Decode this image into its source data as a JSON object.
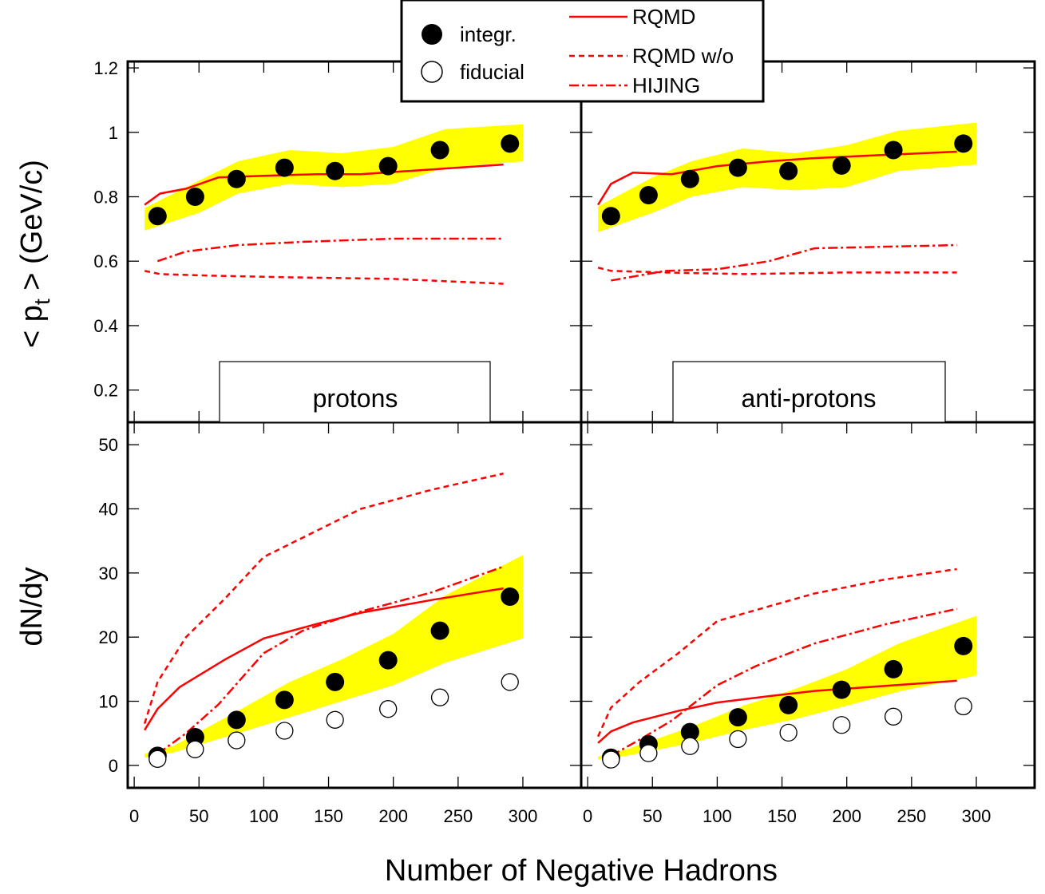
{
  "colors": {
    "model": "#ff0000",
    "band": "#ffff00",
    "frame": "#000000"
  },
  "legend": {
    "integr": "integr.",
    "fiducial": "fiducial",
    "rqmd": "RQMD",
    "rqmd_wo": "RQMD w/o",
    "hijing": "HIJING"
  },
  "labels": {
    "ylabel_top_prefix": "< p",
    "ylabel_top_sub": "t",
    "ylabel_top_suffix": " > (GeV/c)",
    "ylabel_bottom": "dN/dy",
    "xlabel": "Number of Negative Hadrons",
    "panel_left": "protons",
    "panel_right": "anti-protons"
  },
  "axes": {
    "x_ticks": [
      "0",
      "50",
      "100",
      "150",
      "200",
      "250",
      "300"
    ],
    "x_tick_values": [
      0,
      50,
      100,
      150,
      200,
      250,
      300
    ],
    "xlim": [
      -5,
      345
    ],
    "top_ylim": [
      0.1,
      1.22
    ],
    "top_ticks": [
      "0.2",
      "0.4",
      "0.6",
      "0.8",
      "1",
      "1.2"
    ],
    "top_tick_values": [
      0.2,
      0.4,
      0.6,
      0.8,
      1.0,
      1.2
    ],
    "bottom_ylim": [
      -3.5,
      53.5
    ],
    "bottom_ticks": [
      "0",
      "10",
      "20",
      "30",
      "40",
      "50"
    ],
    "bottom_tick_values": [
      0,
      10,
      20,
      30,
      40,
      50
    ]
  },
  "chart_data": [
    {
      "type": "scatter",
      "panel": "protons-mean-pt",
      "x": [
        18,
        47,
        79,
        116,
        155,
        196,
        236,
        290
      ],
      "series": [
        {
          "name": "integr.",
          "values": [
            0.74,
            0.8,
            0.855,
            0.89,
            0.88,
            0.895,
            0.945,
            0.965
          ]
        }
      ],
      "band": {
        "x": [
          8,
          50,
          80,
          120,
          160,
          200,
          240,
          300
        ],
        "lower": [
          0.695,
          0.75,
          0.81,
          0.84,
          0.83,
          0.84,
          0.89,
          0.91
        ],
        "upper": [
          0.765,
          0.85,
          0.91,
          0.945,
          0.935,
          0.955,
          1.01,
          1.025
        ]
      },
      "models": {
        "RQMD": {
          "x": [
            8,
            20,
            40,
            65,
            100,
            140,
            175,
            230,
            285
          ],
          "y": [
            0.775,
            0.81,
            0.825,
            0.86,
            0.865,
            0.87,
            0.87,
            0.885,
            0.9
          ]
        },
        "RQMD w/o": {
          "x": [
            8,
            20,
            60,
            120,
            200,
            285
          ],
          "y": [
            0.57,
            0.56,
            0.555,
            0.55,
            0.545,
            0.53
          ]
        },
        "HIJING": {
          "x": [
            18,
            40,
            80,
            130,
            200,
            285
          ],
          "y": [
            0.6,
            0.63,
            0.65,
            0.66,
            0.67,
            0.67
          ]
        }
      }
    },
    {
      "type": "scatter",
      "panel": "anti-protons-mean-pt",
      "x": [
        18,
        47,
        79,
        116,
        155,
        196,
        236,
        290
      ],
      "series": [
        {
          "name": "integr.",
          "values": [
            0.74,
            0.805,
            0.855,
            0.89,
            0.88,
            0.897,
            0.945,
            0.965
          ]
        }
      ],
      "band": {
        "x": [
          8,
          50,
          80,
          120,
          160,
          200,
          240,
          300
        ],
        "lower": [
          0.69,
          0.75,
          0.8,
          0.83,
          0.82,
          0.83,
          0.88,
          0.9
        ],
        "upper": [
          0.77,
          0.86,
          0.91,
          0.95,
          0.935,
          0.96,
          1.005,
          1.03
        ]
      },
      "models": {
        "RQMD": {
          "x": [
            8,
            18,
            35,
            65,
            100,
            140,
            175,
            230,
            285
          ],
          "y": [
            0.775,
            0.84,
            0.875,
            0.87,
            0.895,
            0.91,
            0.92,
            0.93,
            0.94
          ]
        },
        "RQMD w/o": {
          "x": [
            8,
            18,
            60,
            120,
            200,
            285
          ],
          "y": [
            0.58,
            0.57,
            0.565,
            0.56,
            0.565,
            0.565
          ]
        },
        "HIJING": {
          "x": [
            18,
            60,
            100,
            140,
            175,
            230,
            285
          ],
          "y": [
            0.54,
            0.57,
            0.575,
            0.6,
            0.64,
            0.645,
            0.65
          ]
        }
      }
    },
    {
      "type": "scatter",
      "panel": "protons-dndy",
      "x": [
        18,
        47,
        79,
        116,
        155,
        196,
        236,
        290
      ],
      "series": [
        {
          "name": "integr.",
          "values": [
            1.5,
            4.4,
            7.1,
            10.2,
            13.0,
            16.4,
            21.0,
            26.3
          ]
        },
        {
          "name": "fiducial",
          "values": [
            1.0,
            2.5,
            3.9,
            5.4,
            7.1,
            8.8,
            10.6,
            13.0
          ]
        }
      ],
      "band": {
        "x": [
          8,
          30,
          80,
          120,
          160,
          200,
          240,
          300
        ],
        "lower": [
          1.2,
          2.0,
          5.0,
          7.5,
          10.0,
          12.5,
          16.0,
          19.8
        ],
        "upper": [
          1.8,
          3.0,
          8.5,
          13.0,
          16.5,
          20.5,
          26.5,
          32.8
        ]
      },
      "models": {
        "RQMD": {
          "x": [
            8,
            18,
            35,
            70,
            100,
            140,
            175,
            230,
            285
          ],
          "y": [
            5.5,
            8.8,
            12.2,
            16.5,
            19.8,
            22.0,
            23.8,
            25.8,
            27.6
          ]
        },
        "RQMD w/o": {
          "x": [
            8,
            18,
            40,
            70,
            100,
            140,
            175,
            230,
            285
          ],
          "y": [
            6.5,
            13.0,
            20.0,
            26.0,
            32.5,
            36.5,
            40.0,
            43.0,
            45.5
          ]
        },
        "HIJING": {
          "x": [
            18,
            40,
            65,
            100,
            130,
            175,
            230,
            285
          ],
          "y": [
            1.8,
            5.0,
            9.5,
            17.5,
            21.0,
            24.0,
            27.0,
            31.0
          ]
        }
      }
    },
    {
      "type": "scatter",
      "panel": "anti-protons-dndy",
      "x": [
        18,
        47,
        79,
        116,
        155,
        196,
        236,
        290
      ],
      "series": [
        {
          "name": "integr.",
          "values": [
            1.2,
            3.3,
            5.2,
            7.5,
            9.4,
            11.8,
            15.0,
            18.6
          ]
        },
        {
          "name": "fiducial",
          "values": [
            0.9,
            1.9,
            3.0,
            4.1,
            5.1,
            6.3,
            7.6,
            9.2
          ]
        }
      ],
      "band": {
        "x": [
          8,
          30,
          80,
          120,
          160,
          200,
          240,
          300
        ],
        "lower": [
          0.9,
          1.5,
          3.5,
          5.5,
          7.2,
          9.3,
          11.5,
          14.0
        ],
        "upper": [
          1.4,
          2.5,
          6.0,
          9.3,
          11.9,
          15.0,
          19.0,
          23.3
        ]
      },
      "models": {
        "RQMD": {
          "x": [
            8,
            18,
            35,
            70,
            100,
            140,
            175,
            230,
            285
          ],
          "y": [
            3.5,
            5.3,
            6.7,
            8.5,
            9.8,
            10.8,
            11.6,
            12.4,
            13.2
          ]
        },
        "RQMD w/o": {
          "x": [
            8,
            18,
            40,
            70,
            100,
            140,
            175,
            230,
            285
          ],
          "y": [
            4.5,
            9.0,
            13.0,
            17.5,
            22.5,
            24.8,
            26.8,
            29.0,
            30.6
          ]
        },
        "HIJING": {
          "x": [
            18,
            40,
            65,
            100,
            130,
            175,
            230,
            285
          ],
          "y": [
            1.5,
            4.0,
            7.0,
            12.5,
            15.5,
            19.0,
            22.0,
            24.4
          ]
        }
      }
    }
  ]
}
